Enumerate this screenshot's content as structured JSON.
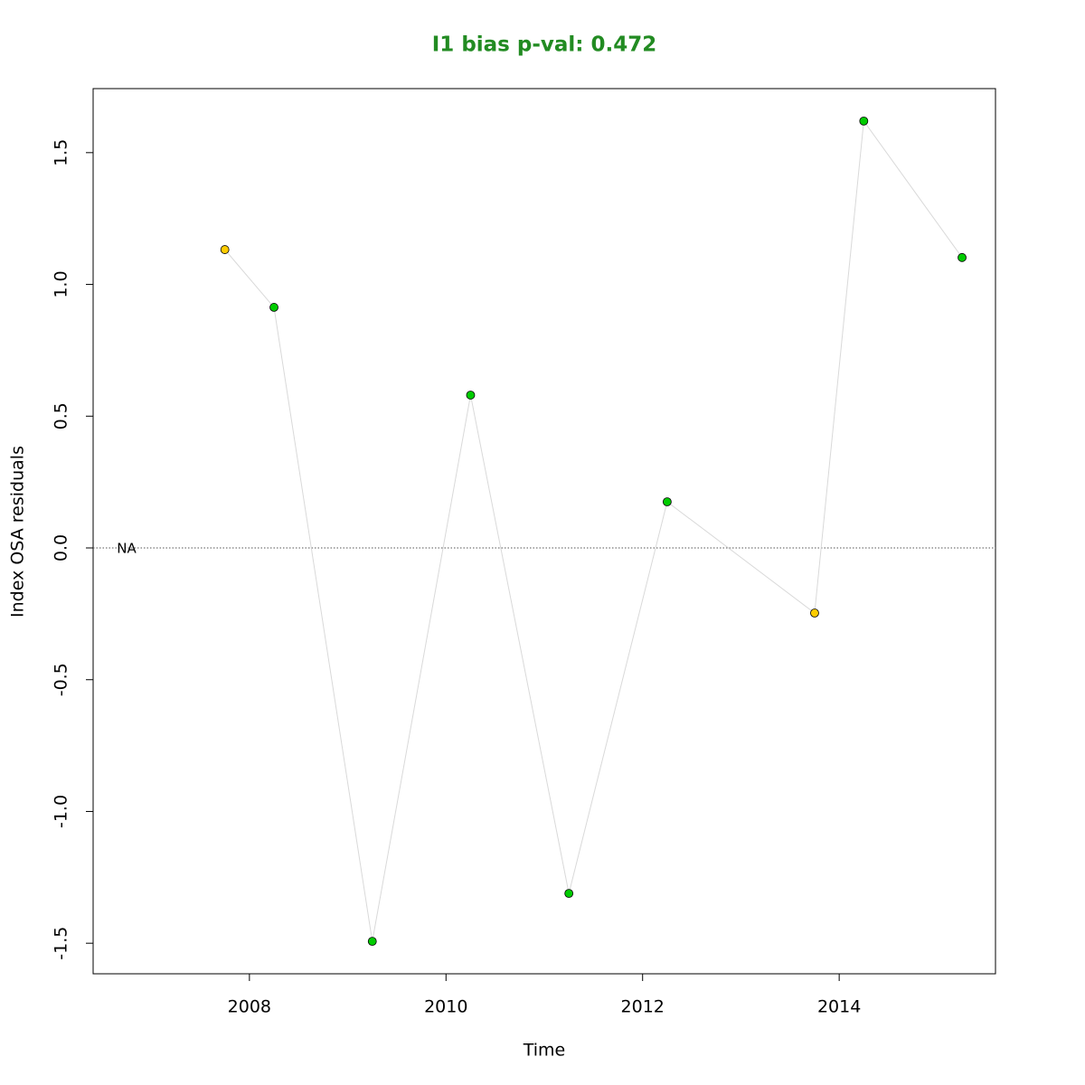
{
  "chart_data": {
    "type": "line",
    "title": "I1 bias p-val: 0.472",
    "title_color": "#228b22",
    "x_label": "Time",
    "y_label": "Index OSA residuals",
    "x": [
      2007.75,
      2008.25,
      2009.25,
      2010.25,
      2011.25,
      2012.25,
      2013.75,
      2014.25,
      2015.25
    ],
    "values": [
      1.132,
      0.913,
      -1.493,
      0.58,
      -1.311,
      0.175,
      -0.247,
      1.62,
      1.102
    ],
    "point_colors": [
      "#ffcc00",
      "#00cc00",
      "#00cc00",
      "#00cc00",
      "#00cc00",
      "#00cc00",
      "#ffcc00",
      "#00cc00",
      "#00cc00"
    ],
    "line_color": "#d9d9d9",
    "hline": 0,
    "annotations": [
      {
        "text": "NA",
        "x": 2006.75,
        "y": 0
      }
    ],
    "xlim": [
      2006.41,
      2015.59
    ],
    "ylim": [
      -1.616,
      1.743
    ],
    "xticks": [
      2008,
      2010,
      2012,
      2014
    ],
    "yticks": [
      -1.5,
      {
        "value": -1,
        "label": "-1.0"
      },
      -0.5,
      {
        "value": 0,
        "label": "0.0"
      },
      0.5,
      {
        "value": 1,
        "label": "1.0"
      },
      1.5
    ]
  }
}
